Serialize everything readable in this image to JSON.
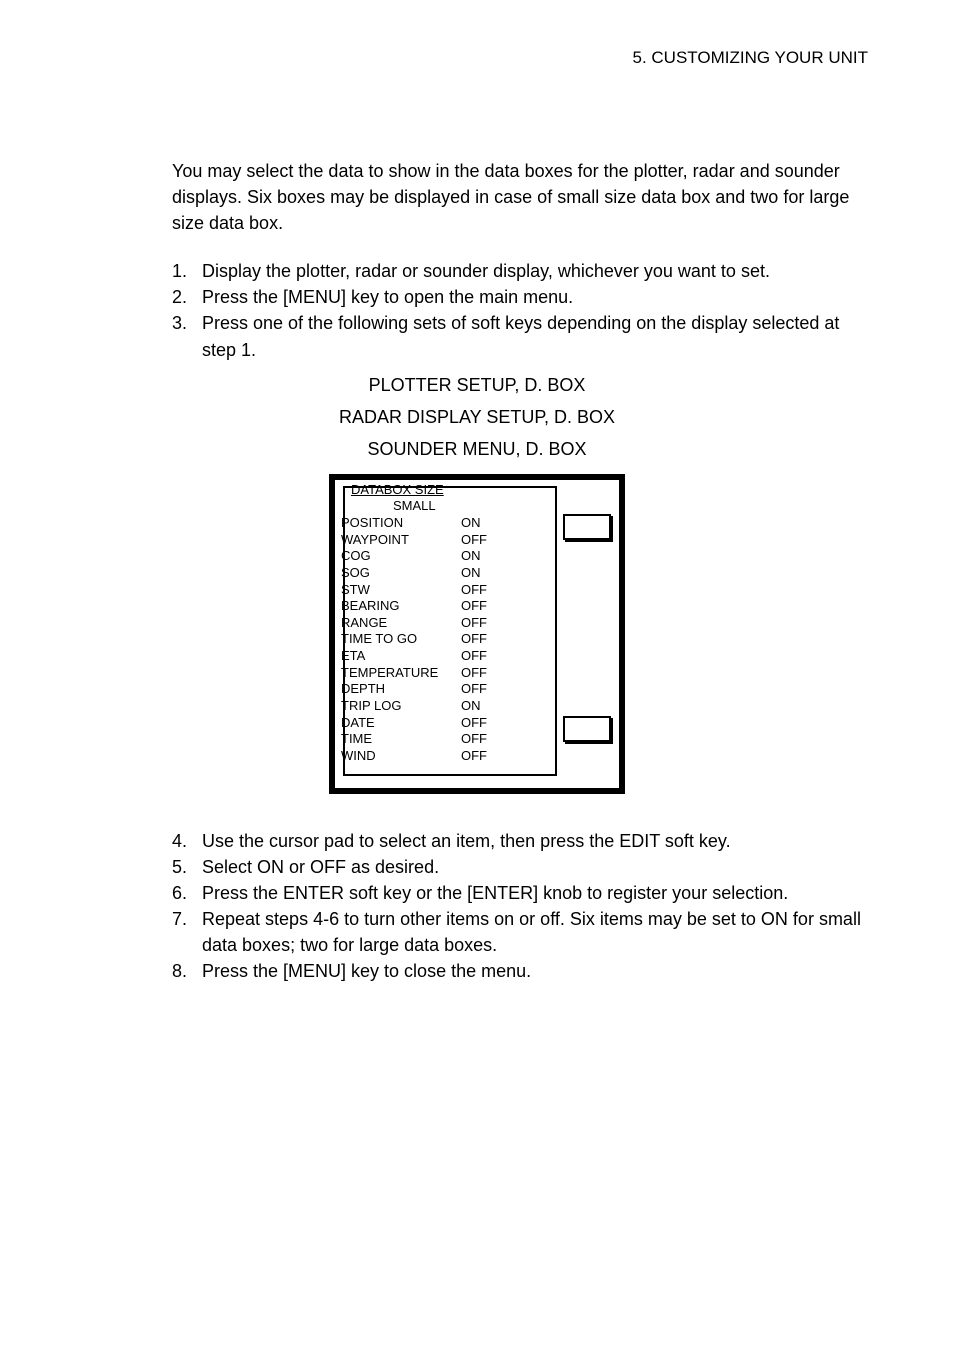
{
  "header": {
    "title": "5. CUSTOMIZING YOUR UNIT"
  },
  "intro": "You may select the data to show in the data boxes for the plotter, radar and sounder displays. Six boxes may be displayed in case of small size data box and two for large size data box.",
  "steps_top": [
    {
      "n": "1.",
      "t": "Display the plotter, radar or sounder display, whichever you want to set."
    },
    {
      "n": "2.",
      "t": "Press the [MENU] key to open the main menu."
    },
    {
      "n": "3.",
      "t": "Press one of the following sets of soft keys depending on the display selected at step 1."
    }
  ],
  "setup_lines": [
    "PLOTTER SETUP, D. BOX",
    "RADAR DISPLAY SETUP, D. BOX",
    "SOUNDER MENU, D. BOX"
  ],
  "databox": {
    "header": "DATABOX SIZE",
    "sub": "SMALL",
    "rows": [
      {
        "label": "POSITION",
        "value": "ON"
      },
      {
        "label": "WAYPOINT",
        "value": "OFF"
      },
      {
        "label": "COG",
        "value": "ON"
      },
      {
        "label": "SOG",
        "value": "ON"
      },
      {
        "label": "STW",
        "value": "OFF"
      },
      {
        "label": "BEARING",
        "value": "OFF"
      },
      {
        "label": "RANGE",
        "value": "OFF"
      },
      {
        "label": "TIME TO GO",
        "value": "OFF"
      },
      {
        "label": "ETA",
        "value": "OFF"
      },
      {
        "label": "TEMPERATURE",
        "value": "OFF"
      },
      {
        "label": "DEPTH",
        "value": "OFF"
      },
      {
        "label": "TRIP LOG",
        "value": "ON"
      },
      {
        "label": "DATE",
        "value": "OFF"
      },
      {
        "label": "TIME",
        "value": "OFF"
      },
      {
        "label": "WIND",
        "value": "OFF"
      }
    ]
  },
  "steps_bottom": [
    {
      "n": "4.",
      "t": "Use the cursor pad to select an item, then press the EDIT soft key."
    },
    {
      "n": "5.",
      "t": "Select ON or OFF as desired."
    },
    {
      "n": "6.",
      "t": "Press the ENTER soft key or the [ENTER] knob to register your selection."
    },
    {
      "n": "7.",
      "t": "Repeat steps 4-6 to turn other items on or off. Six items may be set to ON for small data boxes; two for large data boxes."
    },
    {
      "n": "8.",
      "t": "Press the [MENU] key to close the menu."
    }
  ]
}
